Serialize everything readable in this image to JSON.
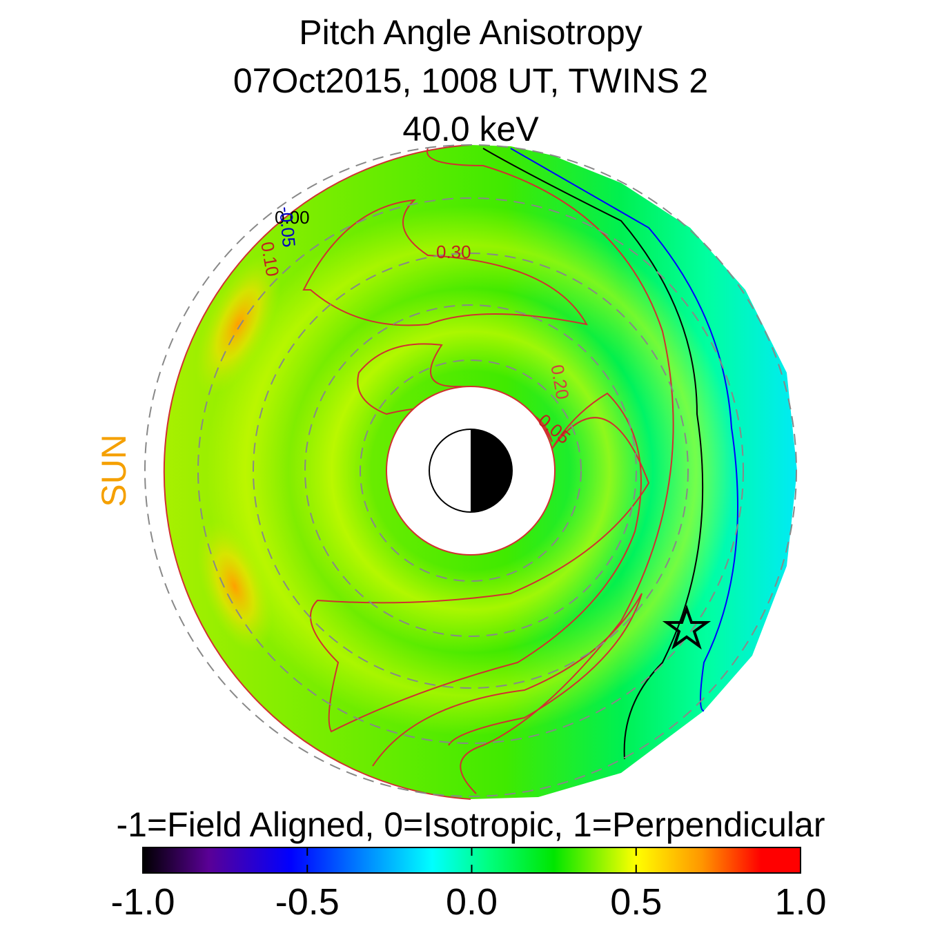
{
  "chart_data": {
    "type": "polar-heatmap",
    "title": [
      "Pitch Angle Anisotropy",
      "07Oct2015, 1008 UT,  TWINS 2",
      "40.0 keV"
    ],
    "side_label": "SUN",
    "colorbar_label": "-1=Field Aligned, 0=Isotropic, 1=Perpendicular",
    "clim": [
      -1,
      1
    ],
    "cticks": [
      {
        "value": -1,
        "label": "-1.0"
      },
      {
        "value": -0.5,
        "label": "-0.5"
      },
      {
        "value": 0,
        "label": "0.0"
      },
      {
        "value": 0.5,
        "label": "0.5"
      },
      {
        "value": 1,
        "label": "1.0"
      }
    ],
    "colorscale": [
      [
        -1,
        "#000000"
      ],
      [
        -0.8,
        "#5a0096"
      ],
      [
        -0.55,
        "#0000ff"
      ],
      [
        -0.3,
        "#0096ff"
      ],
      [
        -0.12,
        "#00ffff"
      ],
      [
        0.05,
        "#00ff80"
      ],
      [
        0.25,
        "#00e600"
      ],
      [
        0.5,
        "#ffff00"
      ],
      [
        0.7,
        "#ff9600"
      ],
      [
        0.88,
        "#ff0000"
      ],
      [
        1,
        "#ff0000"
      ]
    ],
    "contour_levels": [
      {
        "value": 0.3,
        "label": "0.30"
      },
      {
        "value": 0.2,
        "label": "0.20"
      },
      {
        "value": 0.05,
        "label": "0.05"
      },
      {
        "value": 0.1,
        "label": "0.10"
      },
      {
        "value": 0,
        "label": "0.00"
      },
      {
        "value": -0.05,
        "label": "-0.05"
      }
    ]
  }
}
